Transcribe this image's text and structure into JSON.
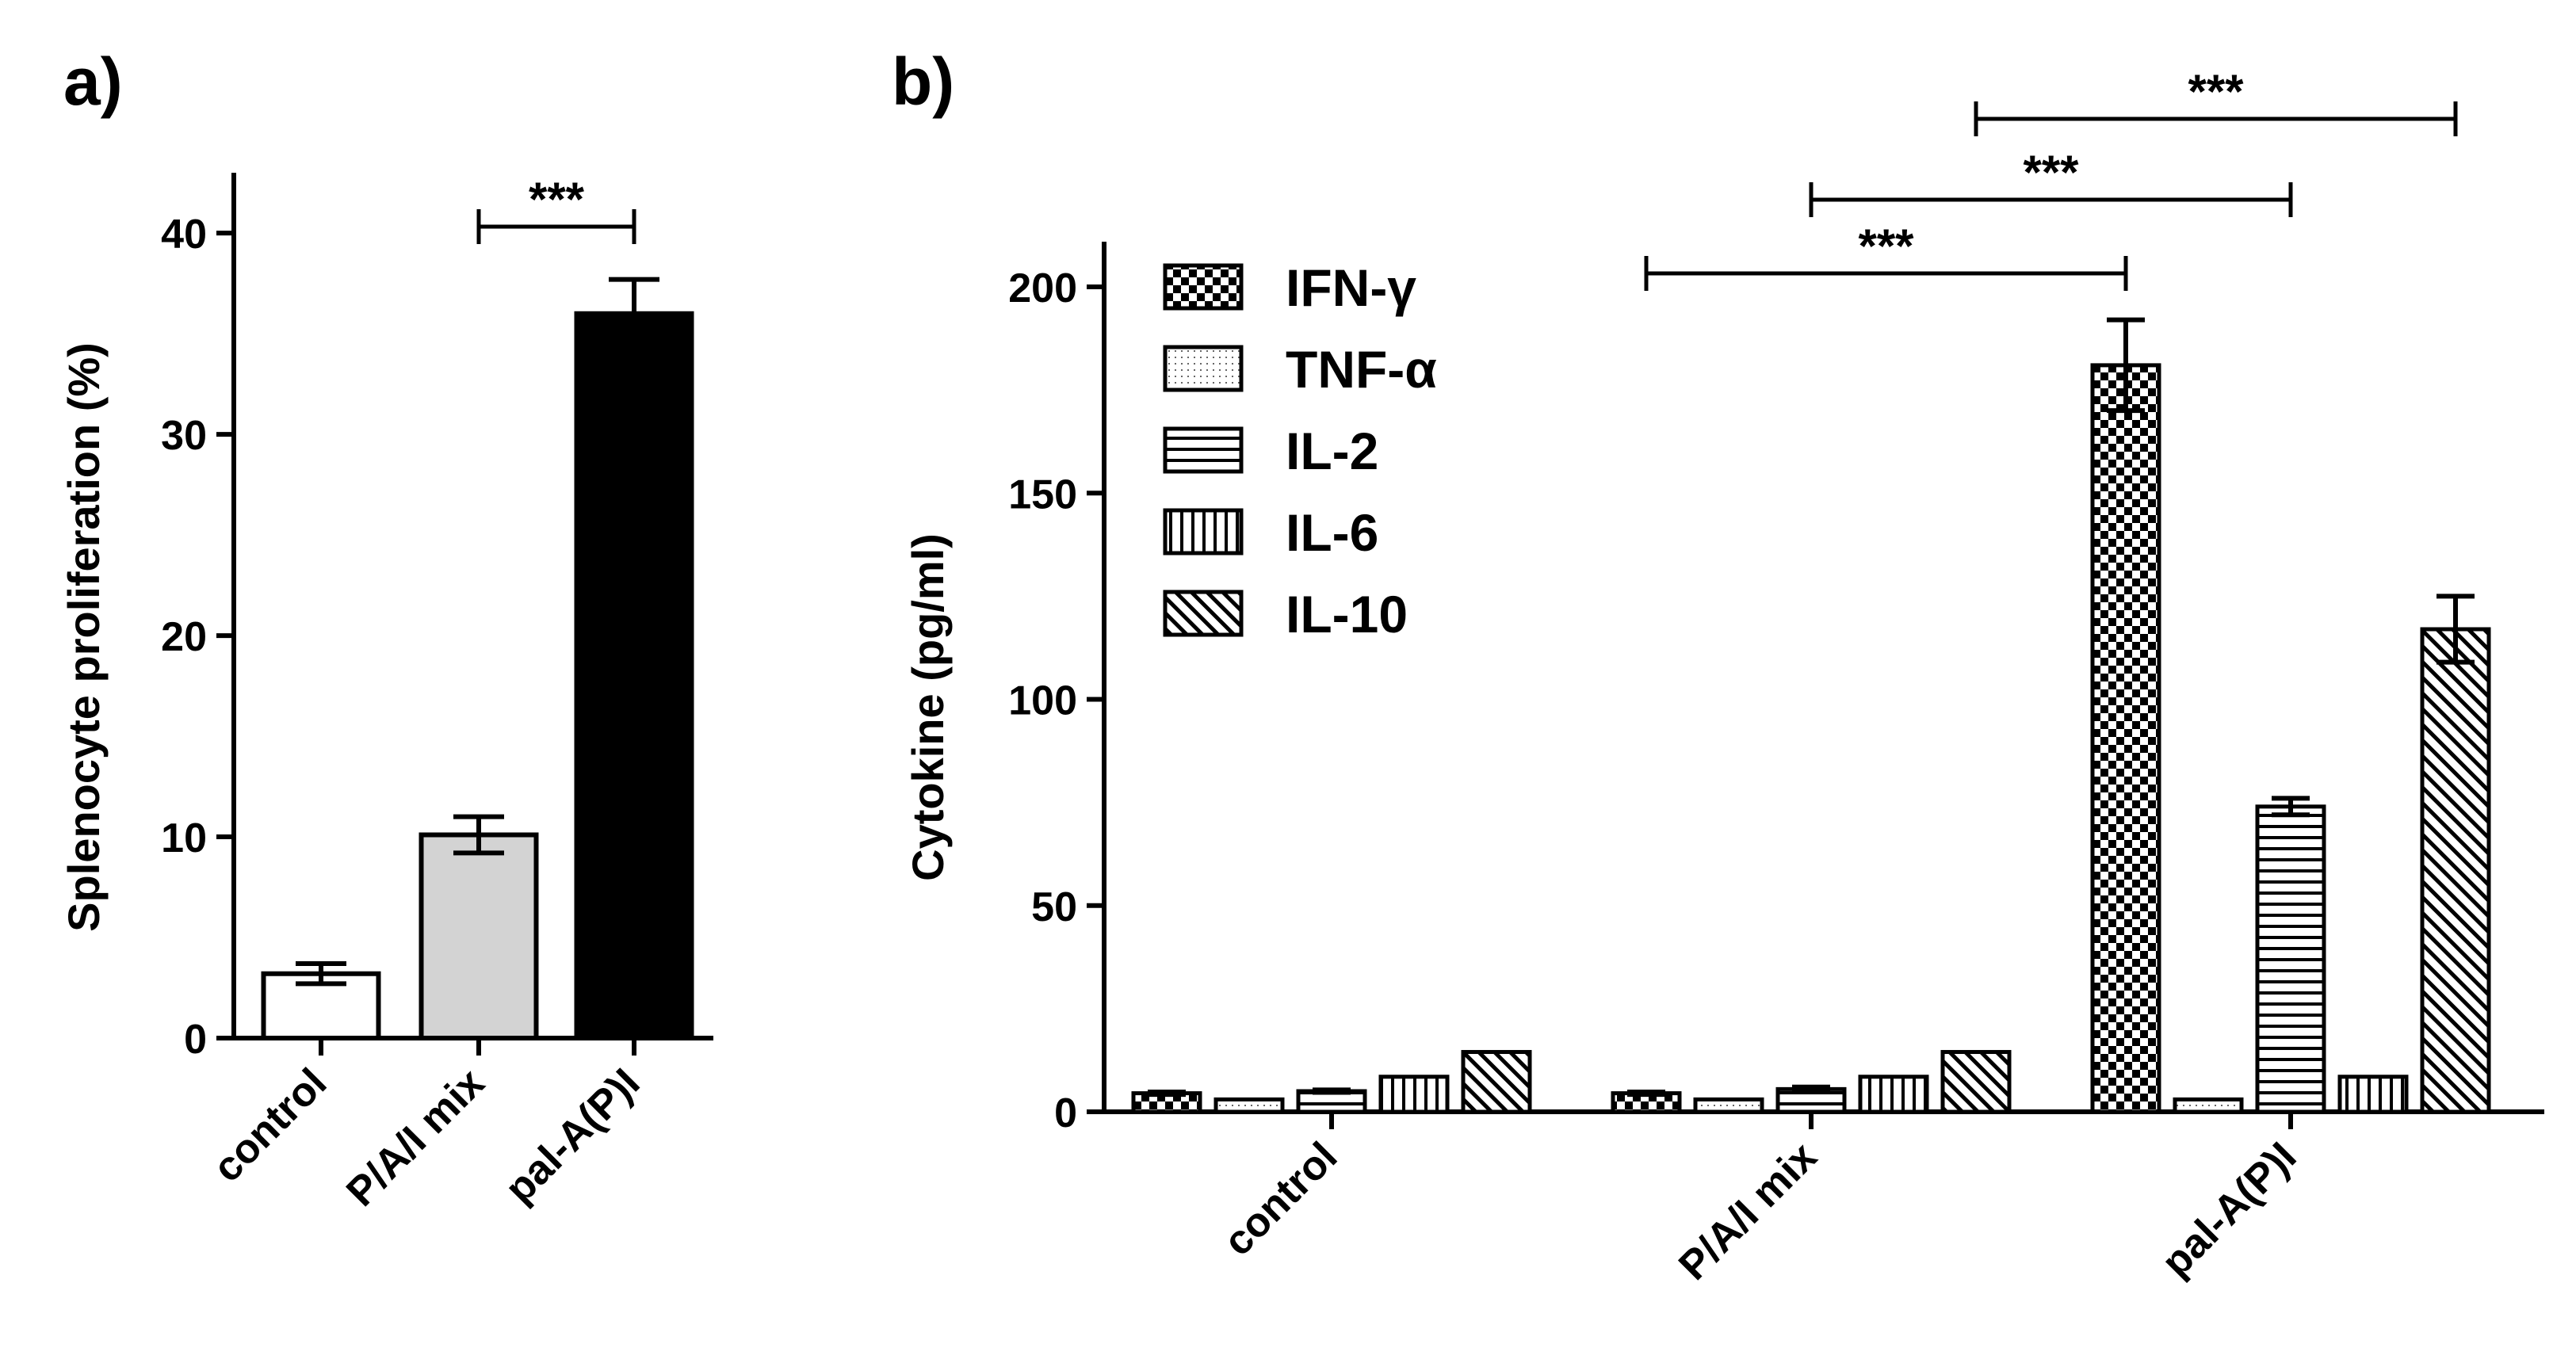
{
  "panels": {
    "a": {
      "label": "a)"
    },
    "b": {
      "label": "b)"
    }
  },
  "significance": {
    "symbol": "***"
  },
  "patterns": {
    "IFN-γ": "checker",
    "TNF-α": "dots",
    "IL-2": "hlines",
    "IL-6": "vlines",
    "IL-10": "diag"
  },
  "chart_data": [
    {
      "type": "bar",
      "panel": "a)",
      "categories": [
        "control",
        "P/A/I mix",
        "pal-A(P)I"
      ],
      "values": [
        3.2,
        10.1,
        36.0
      ],
      "errors": [
        0.5,
        0.9,
        1.7
      ],
      "bar_colors": [
        "#ffffff",
        "#d3d3d3",
        "#000000"
      ],
      "ylabel": "Splenocyte proliferation (%)",
      "ylim": [
        0,
        43
      ],
      "yticks": [
        0,
        10,
        20,
        30,
        40
      ],
      "significance": [
        {
          "from": 1,
          "to": 2,
          "label": "***"
        }
      ]
    },
    {
      "type": "bar",
      "panel": "b)",
      "categories": [
        "control",
        "P/A/I mix",
        "pal-A(P)I"
      ],
      "ylabel": "Cytokine (pg/ml)",
      "ylim": [
        0,
        210
      ],
      "yticks": [
        0,
        50,
        100,
        150,
        200
      ],
      "legend_position": "top-left",
      "series": [
        {
          "name": "IFN-γ",
          "values": [
            4.5,
            4.5,
            181
          ],
          "errors": [
            0.3,
            0.3,
            11
          ]
        },
        {
          "name": "TNF-α",
          "values": [
            3,
            3,
            3
          ],
          "errors": [
            0,
            0,
            0
          ]
        },
        {
          "name": "IL-2",
          "values": [
            5,
            5.5,
            74
          ],
          "errors": [
            0.3,
            0.5,
            2
          ]
        },
        {
          "name": "IL-6",
          "values": [
            8.5,
            8.5,
            8.5
          ],
          "errors": [
            0,
            0,
            0
          ]
        },
        {
          "name": "IL-10",
          "values": [
            14.5,
            14.5,
            117
          ],
          "errors": [
            0,
            0,
            8
          ]
        }
      ],
      "significance": [
        {
          "from": [
            1,
            0
          ],
          "to": [
            2,
            0
          ],
          "label": "***"
        },
        {
          "from": [
            1,
            2
          ],
          "to": [
            2,
            2
          ],
          "label": "***"
        },
        {
          "from": [
            1,
            4
          ],
          "to": [
            2,
            4
          ],
          "label": "***"
        }
      ]
    }
  ]
}
